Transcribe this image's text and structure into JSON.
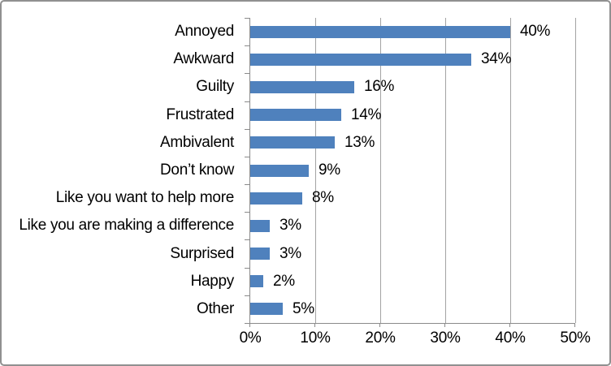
{
  "chart_data": {
    "type": "bar",
    "orientation": "horizontal",
    "title": "",
    "xlabel": "",
    "ylabel": "",
    "categories": [
      "Annoyed",
      "Awkward",
      "Guilty",
      "Frustrated",
      "Ambivalent",
      "Don’t know",
      "Like you want to help more",
      "Like you are making a difference",
      "Surprised",
      "Happy",
      "Other"
    ],
    "values": [
      40,
      34,
      16,
      14,
      13,
      9,
      8,
      3,
      3,
      2,
      5
    ],
    "value_labels": [
      "40%",
      "34%",
      "16%",
      "14%",
      "13%",
      "9%",
      "8%",
      "3%",
      "3%",
      "2%",
      "5%"
    ],
    "x_tick_values": [
      0,
      10,
      20,
      30,
      40,
      50
    ],
    "x_tick_labels": [
      "0%",
      "10%",
      "20%",
      "30%",
      "40%",
      "50%"
    ],
    "xlim": [
      0,
      50
    ],
    "grid": "vertical-gridlines-on",
    "legend": "none",
    "bar_color": "#4F81BD",
    "gridline_color": "#a3a3a3",
    "axis_color": "#8a8a8a",
    "border_color": "#909090",
    "text_color": "#000000"
  }
}
